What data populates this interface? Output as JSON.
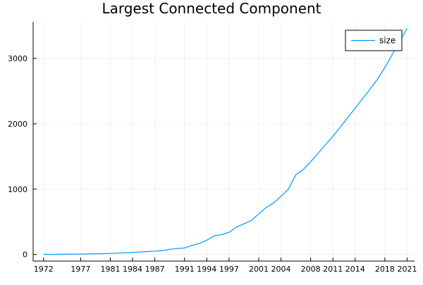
{
  "chart_data": {
    "type": "line",
    "title": "Largest Connected Component",
    "xlabel": "",
    "ylabel": "",
    "xlim": [
      1970.6,
      2022.0
    ],
    "ylim": [
      -100,
      3560
    ],
    "x_ticks": [
      1972,
      1977,
      1981,
      1984,
      1987,
      1991,
      1994,
      1997,
      2001,
      2004,
      2008,
      2011,
      2014,
      2018,
      2021
    ],
    "y_ticks": [
      0,
      1000,
      2000,
      3000
    ],
    "grid": true,
    "legend_position": "top-right",
    "series": [
      {
        "name": "size",
        "color": "#009AFA",
        "x": [
          1972,
          1973,
          1974,
          1975,
          1976,
          1977,
          1978,
          1979,
          1980,
          1981,
          1982,
          1983,
          1984,
          1985,
          1986,
          1987,
          1988,
          1989,
          1990,
          1991,
          1992,
          1993,
          1994,
          1995,
          1996,
          1997,
          1998,
          1999,
          2000,
          2001,
          2002,
          2003,
          2004,
          2005,
          2006,
          2007,
          2008,
          2009,
          2010,
          2011,
          2012,
          2013,
          2014,
          2015,
          2016,
          2017,
          2018,
          2019,
          2020,
          2021
        ],
        "y": [
          2,
          3,
          4,
          5,
          6,
          7,
          9,
          11,
          13,
          18,
          22,
          27,
          32,
          38,
          45,
          50,
          60,
          80,
          92,
          100,
          140,
          170,
          220,
          285,
          305,
          340,
          420,
          470,
          520,
          620,
          720,
          790,
          890,
          1000,
          1220,
          1300,
          1420,
          1550,
          1680,
          1810,
          1950,
          2095,
          2240,
          2385,
          2530,
          2680,
          2860,
          3060,
          3260,
          3460
        ]
      }
    ]
  }
}
